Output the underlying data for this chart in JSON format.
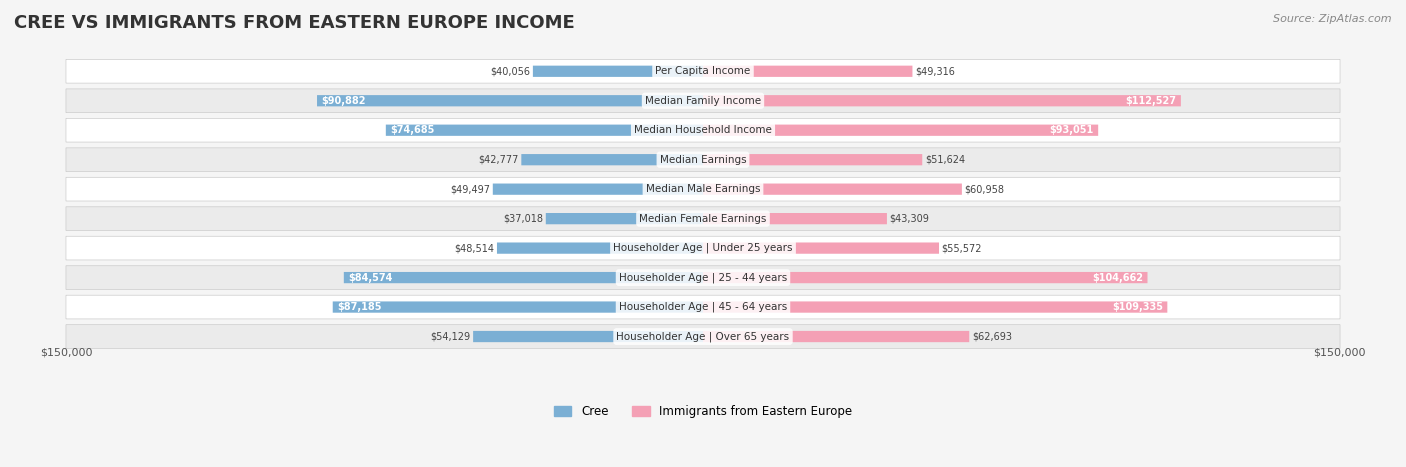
{
  "title": "CREE VS IMMIGRANTS FROM EASTERN EUROPE INCOME",
  "source": "Source: ZipAtlas.com",
  "categories": [
    "Per Capita Income",
    "Median Family Income",
    "Median Household Income",
    "Median Earnings",
    "Median Male Earnings",
    "Median Female Earnings",
    "Householder Age | Under 25 years",
    "Householder Age | 25 - 44 years",
    "Householder Age | 45 - 64 years",
    "Householder Age | Over 65 years"
  ],
  "cree_values": [
    40056,
    90882,
    74685,
    42777,
    49497,
    37018,
    48514,
    84574,
    87185,
    54129
  ],
  "immigrant_values": [
    49316,
    112527,
    93051,
    51624,
    60958,
    43309,
    55572,
    104662,
    109335,
    62693
  ],
  "cree_color": "#7bafd4",
  "cree_color_dark": "#5b8db8",
  "immigrant_color": "#f4a0b5",
  "immigrant_color_dark": "#e8728e",
  "max_value": 150000,
  "legend_cree": "Cree",
  "legend_immigrant": "Immigrants from Eastern Europe",
  "left_label": "$150,000",
  "right_label": "$150,000",
  "background_color": "#f5f5f5",
  "row_bg_color": "#ffffff",
  "row_bg_color_alt": "#f0f0f0"
}
